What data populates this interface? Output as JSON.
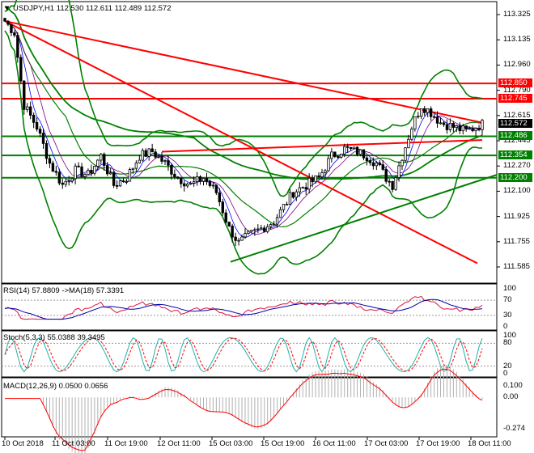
{
  "main": {
    "title": "USDJPY,H1",
    "ohlc": "112.530 112.611 112.489 112.572",
    "price_axis": [
      "113.325",
      "113.135",
      "112.960",
      "112.790",
      "112.615",
      "112.445",
      "112.270",
      "112.100",
      "111.925",
      "111.755",
      "111.585"
    ],
    "tags": [
      {
        "text": "112.850",
        "color": "#ff0000"
      },
      {
        "text": "112.745",
        "color": "#ff0000"
      },
      {
        "text": "112.572",
        "color": "#000000"
      },
      {
        "text": "112.486",
        "color": "#008000"
      },
      {
        "text": "112.354",
        "color": "#008000"
      },
      {
        "text": "112.200",
        "color": "#008000"
      }
    ]
  },
  "rsi": {
    "title": "RSI(14) 57.8809 ->MA(18) 57.3391",
    "axis": [
      "100",
      "70",
      "30",
      "0"
    ]
  },
  "stoch": {
    "title": "Stoch(5,3,3) 55.0388 39.3495",
    "axis": [
      "100",
      "80",
      "20",
      "0"
    ]
  },
  "macd": {
    "title": "MACD(12,26,9) 0.0500 0.0656",
    "axis": [
      "0.100",
      "0.00",
      "-0.274"
    ]
  },
  "time_axis": [
    "10 Oct 2018",
    "11 Oct 03:00",
    "11 Oct 19:00",
    "12 Oct 11:00",
    "15 Oct 03:00",
    "15 Oct 19:00",
    "16 Oct 11:00",
    "17 Oct 03:00",
    "17 Oct 19:00",
    "18 Oct 11:00"
  ],
  "colors": {
    "bull_candle": "#000000",
    "bear_candle": "#000000",
    "support_line": "#008000",
    "resistance_line": "#ff0000",
    "bollinger": "#008000",
    "ma_fast": "#0000ff",
    "ma_slow": "#800080"
  }
}
